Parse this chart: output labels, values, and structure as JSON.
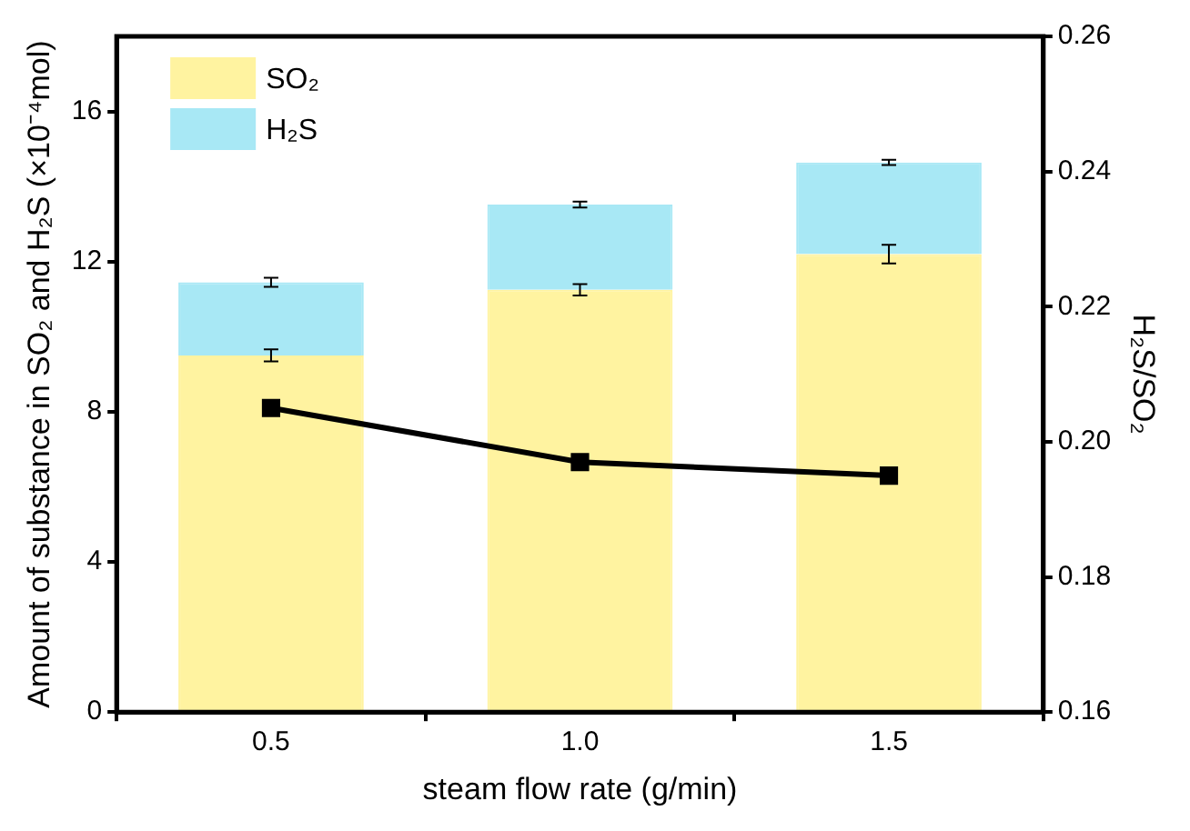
{
  "chart_data": {
    "type": "bar",
    "xlabel": "steam flow rate (g/min)",
    "ylabel": "Amount of substance in SO₂ and H₂S (×10⁻⁴mol)",
    "y2label": "H₂S/SO₂",
    "categories": [
      "0.5",
      "1.0",
      "1.5"
    ],
    "stacked": true,
    "series": [
      {
        "name": "SO₂",
        "color": "#fff3a0",
        "values": [
          9.5,
          11.25,
          12.2
        ],
        "errors": [
          0.16,
          0.15,
          0.25
        ]
      },
      {
        "name": "H₂S",
        "color": "#a8e8f5",
        "values": [
          1.95,
          2.27,
          2.44
        ],
        "errors": [
          0.12,
          0.08,
          0.07
        ]
      },
      {
        "type": "line",
        "axis": "y2",
        "color": "#000000",
        "values": [
          0.205,
          0.197,
          0.195
        ],
        "marker": "square"
      }
    ],
    "ylim": [
      0,
      18
    ],
    "yticks": [
      0,
      4,
      8,
      12,
      16
    ],
    "y2lim": [
      0.16,
      0.26
    ],
    "y2ticks": [
      {
        "value": 0.16,
        "label": "0.16"
      },
      {
        "value": 0.18,
        "label": "0.18"
      },
      {
        "value": 0.2,
        "label": "0.20"
      },
      {
        "value": 0.22,
        "label": "0.22"
      },
      {
        "value": 0.24,
        "label": "0.24"
      },
      {
        "value": 0.26,
        "label": "0.26"
      }
    ],
    "grid": false,
    "legend": "top left"
  }
}
